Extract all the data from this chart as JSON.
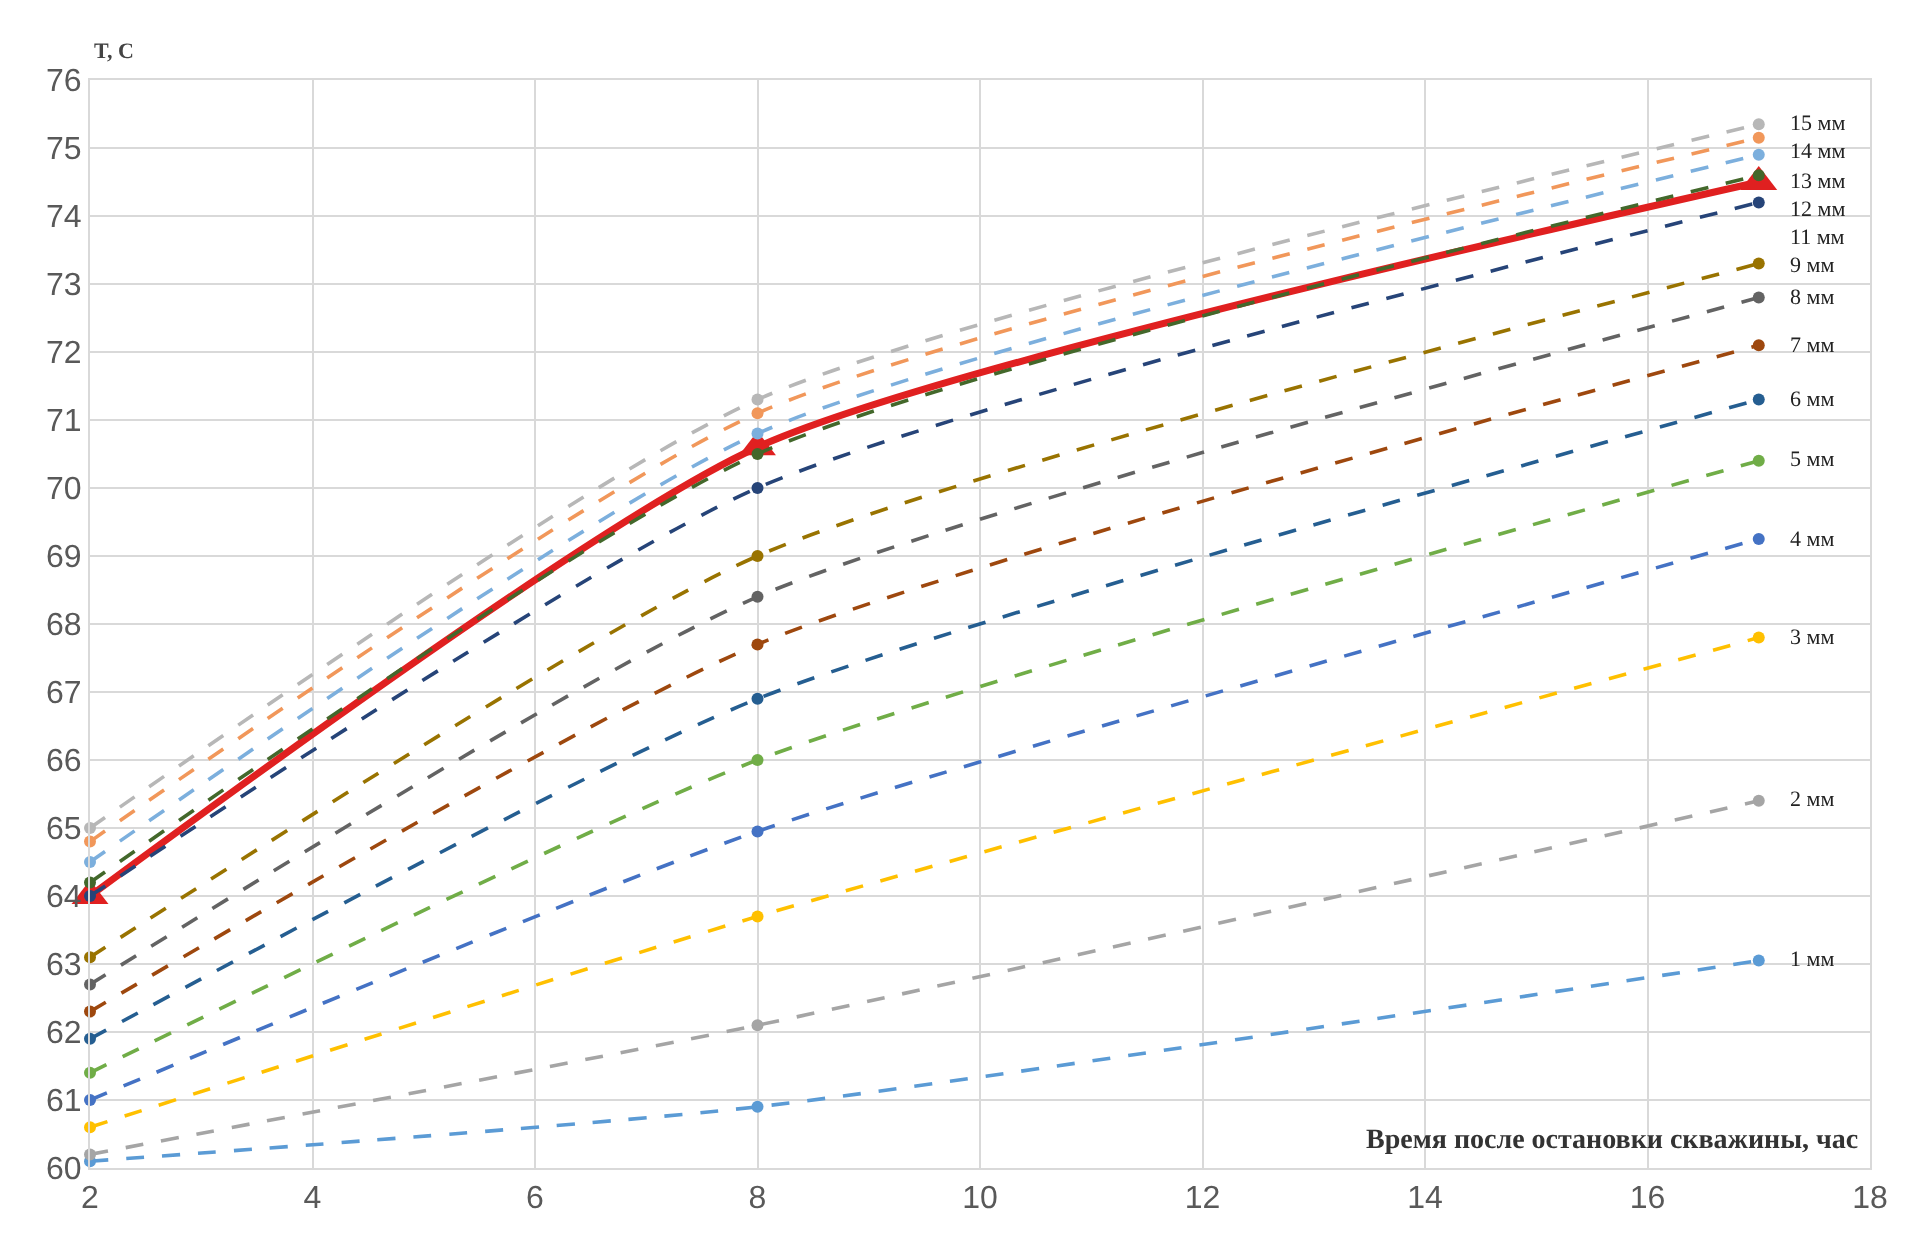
{
  "chart_data": {
    "type": "line",
    "xlabel": "Время после остановки скважины, час",
    "ylabel": "T, C",
    "x": [
      2,
      8,
      17
    ],
    "xlim": [
      2,
      18
    ],
    "xticks": [
      2,
      4,
      6,
      8,
      10,
      12,
      14,
      16,
      18
    ],
    "ylim": [
      60,
      76
    ],
    "yticks": [
      60,
      61,
      62,
      63,
      64,
      65,
      66,
      67,
      68,
      69,
      70,
      71,
      72,
      73,
      74,
      75,
      76
    ],
    "grid": true,
    "legend": false,
    "series": [
      {
        "name": "1 мм",
        "color": "#5b9bd5",
        "values": [
          60.1,
          60.9,
          63.05
        ],
        "marker": "circle",
        "line_style": "dashed"
      },
      {
        "name": "2 мм",
        "color": "#a5a5a5",
        "values": [
          60.2,
          62.1,
          65.4
        ],
        "marker": "circle",
        "line_style": "dashed"
      },
      {
        "name": "3 мм",
        "color": "#ffc000",
        "values": [
          60.6,
          63.7,
          67.8
        ],
        "marker": "circle",
        "line_style": "dashed"
      },
      {
        "name": "4 мм",
        "color": "#4472c4",
        "values": [
          61.0,
          64.95,
          69.25
        ],
        "marker": "circle",
        "line_style": "dashed"
      },
      {
        "name": "5 мм",
        "color": "#70ad47",
        "values": [
          61.4,
          66.0,
          70.4
        ],
        "marker": "circle",
        "line_style": "dashed"
      },
      {
        "name": "6 мм",
        "color": "#255e91",
        "values": [
          61.9,
          66.9,
          71.3
        ],
        "marker": "circle",
        "line_style": "dashed"
      },
      {
        "name": "7 мм",
        "color": "#9e480e",
        "values": [
          62.3,
          67.7,
          72.1
        ],
        "marker": "circle",
        "line_style": "dashed"
      },
      {
        "name": "8 мм",
        "color": "#636363",
        "values": [
          62.7,
          68.4,
          72.8
        ],
        "marker": "circle",
        "line_style": "dashed"
      },
      {
        "name": "9 мм",
        "color": "#997300",
        "values": [
          63.1,
          69.0,
          73.3
        ],
        "marker": "circle",
        "line_style": "dashed"
      },
      {
        "name": "11 мм",
        "color": "#264478",
        "values": [
          64.0,
          70.0,
          74.2
        ],
        "marker": "circle",
        "line_style": "dashed"
      },
      {
        "name": "12 мм",
        "color": "#43682b",
        "values": [
          64.2,
          70.5,
          74.6
        ],
        "marker": "circle",
        "line_style": "dashed"
      },
      {
        "name": "13 мм",
        "color": "#7cafdd",
        "values": [
          64.5,
          70.8,
          74.9
        ],
        "marker": "circle",
        "line_style": "dashed"
      },
      {
        "name": "14 мм",
        "color": "#f1975a",
        "values": [
          64.8,
          71.1,
          75.15
        ],
        "marker": "circle",
        "line_style": "dashed"
      },
      {
        "name": "15 мм",
        "color": "#b7b7b7",
        "values": [
          65.0,
          71.3,
          75.35
        ],
        "marker": "circle",
        "line_style": "dashed"
      },
      {
        "color": "#e02020",
        "values": [
          64.0,
          70.6,
          74.5
        ],
        "marker": "triangle",
        "line_style": "solid"
      }
    ]
  }
}
